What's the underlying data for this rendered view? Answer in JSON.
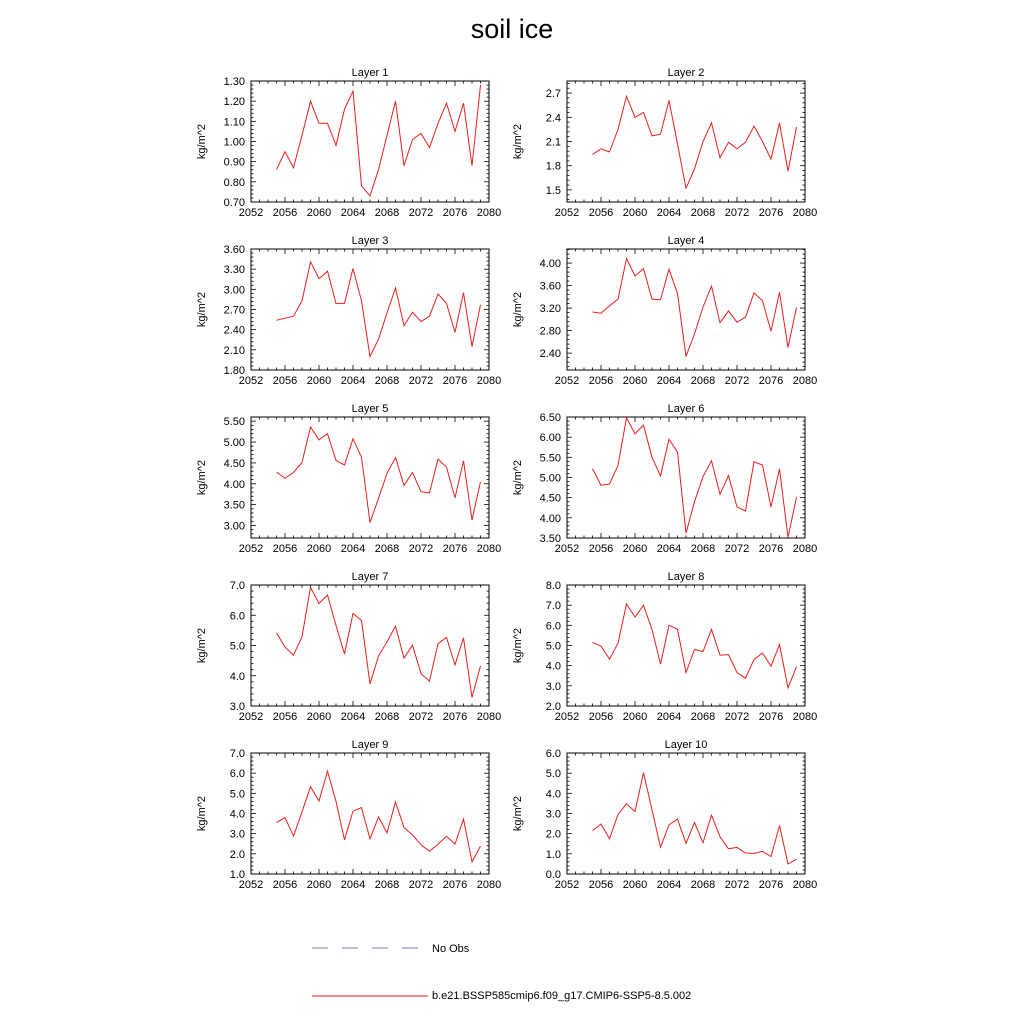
{
  "title": "soil ice",
  "legend": {
    "entries": [
      {
        "label": "No Obs",
        "color": "#7b7bd6",
        "style": "dashed"
      },
      {
        "label": "b.e21.BSSP585cmip6.f09_g17.CMIP6-SSP5-8.5.002",
        "color": "#e8201c",
        "style": "solid"
      }
    ]
  },
  "chart_data": [
    {
      "type": "line",
      "title": "Layer 1",
      "ylabel": "kg/m^2",
      "xlim": [
        2052,
        2080
      ],
      "ylim": [
        0.7,
        1.3
      ],
      "xticks": [
        2052,
        2056,
        2060,
        2064,
        2068,
        2072,
        2076,
        2080
      ],
      "yticks": [
        "0.70",
        "0.80",
        "0.90",
        "1.00",
        "1.10",
        "1.20",
        "1.30"
      ],
      "series": [
        {
          "color": "#e8201c",
          "x": [
            2055,
            2056,
            2057,
            2058,
            2059,
            2060,
            2061,
            2062,
            2063,
            2064,
            2065,
            2066,
            2067,
            2068,
            2069,
            2070,
            2071,
            2072,
            2073,
            2074,
            2075,
            2076,
            2077,
            2078,
            2079
          ],
          "y": [
            0.86,
            0.95,
            0.87,
            1.03,
            1.2,
            1.09,
            1.09,
            0.98,
            1.16,
            1.25,
            0.78,
            0.73,
            0.86,
            1.03,
            1.2,
            0.88,
            1.01,
            1.04,
            0.97,
            1.09,
            1.19,
            1.05,
            1.19,
            0.88,
            1.28
          ]
        }
      ]
    },
    {
      "type": "line",
      "title": "Layer 2",
      "ylabel": "kg/m^2",
      "xlim": [
        2052,
        2080
      ],
      "ylim": [
        1.35,
        2.85
      ],
      "xticks": [
        2052,
        2056,
        2060,
        2064,
        2068,
        2072,
        2076,
        2080
      ],
      "yticks": [
        "1.5",
        "1.8",
        "2.1",
        "2.4",
        "2.7"
      ],
      "series": [
        {
          "color": "#e8201c",
          "x": [
            2055,
            2056,
            2057,
            2058,
            2059,
            2060,
            2061,
            2062,
            2063,
            2064,
            2065,
            2066,
            2067,
            2068,
            2069,
            2070,
            2071,
            2072,
            2073,
            2074,
            2075,
            2076,
            2077,
            2078,
            2079
          ],
          "y": [
            1.94,
            2.01,
            1.97,
            2.25,
            2.66,
            2.4,
            2.46,
            2.17,
            2.19,
            2.61,
            2.07,
            1.52,
            1.76,
            2.1,
            2.33,
            1.9,
            2.09,
            2.01,
            2.09,
            2.29,
            2.1,
            1.88,
            2.33,
            1.73,
            2.28
          ]
        }
      ]
    },
    {
      "type": "line",
      "title": "Layer 3",
      "ylabel": "kg/m^2",
      "xlim": [
        2052,
        2080
      ],
      "ylim": [
        1.8,
        3.6
      ],
      "xticks": [
        2052,
        2056,
        2060,
        2064,
        2068,
        2072,
        2076,
        2080
      ],
      "yticks": [
        "1.80",
        "2.10",
        "2.40",
        "2.70",
        "3.00",
        "3.30",
        "3.60"
      ],
      "series": [
        {
          "color": "#e8201c",
          "x": [
            2055,
            2056,
            2057,
            2058,
            2059,
            2060,
            2061,
            2062,
            2063,
            2064,
            2065,
            2066,
            2067,
            2068,
            2069,
            2070,
            2071,
            2072,
            2073,
            2074,
            2075,
            2076,
            2077,
            2078,
            2079
          ],
          "y": [
            2.54,
            2.57,
            2.6,
            2.83,
            3.41,
            3.16,
            3.27,
            2.79,
            2.79,
            3.31,
            2.83,
            2.0,
            2.26,
            2.65,
            3.02,
            2.46,
            2.66,
            2.52,
            2.6,
            2.93,
            2.79,
            2.36,
            2.95,
            2.15,
            2.77
          ]
        }
      ]
    },
    {
      "type": "line",
      "title": "Layer 4",
      "ylabel": "kg/m^2",
      "xlim": [
        2052,
        2080
      ],
      "ylim": [
        2.1,
        4.25
      ],
      "xticks": [
        2052,
        2056,
        2060,
        2064,
        2068,
        2072,
        2076,
        2080
      ],
      "yticks": [
        "2.40",
        "2.80",
        "3.20",
        "3.60",
        "4.00"
      ],
      "series": [
        {
          "color": "#e8201c",
          "x": [
            2055,
            2056,
            2057,
            2058,
            2059,
            2060,
            2061,
            2062,
            2063,
            2064,
            2065,
            2066,
            2067,
            2068,
            2069,
            2070,
            2071,
            2072,
            2073,
            2074,
            2075,
            2076,
            2077,
            2078,
            2079
          ],
          "y": [
            3.13,
            3.11,
            3.24,
            3.36,
            4.08,
            3.77,
            3.9,
            3.36,
            3.35,
            3.89,
            3.46,
            2.34,
            2.74,
            3.22,
            3.59,
            2.94,
            3.15,
            2.95,
            3.04,
            3.47,
            3.33,
            2.79,
            3.48,
            2.5,
            3.21
          ]
        }
      ]
    },
    {
      "type": "line",
      "title": "Layer 5",
      "ylabel": "kg/m^2",
      "xlim": [
        2052,
        2080
      ],
      "ylim": [
        2.7,
        5.6
      ],
      "xticks": [
        2052,
        2056,
        2060,
        2064,
        2068,
        2072,
        2076,
        2080
      ],
      "yticks": [
        "3.00",
        "3.50",
        "4.00",
        "4.50",
        "5.00",
        "5.50"
      ],
      "series": [
        {
          "color": "#e8201c",
          "x": [
            2055,
            2056,
            2057,
            2058,
            2059,
            2060,
            2061,
            2062,
            2063,
            2064,
            2065,
            2066,
            2067,
            2068,
            2069,
            2070,
            2071,
            2072,
            2073,
            2074,
            2075,
            2076,
            2077,
            2078,
            2079
          ],
          "y": [
            4.28,
            4.13,
            4.27,
            4.51,
            5.36,
            5.05,
            5.2,
            4.56,
            4.45,
            5.08,
            4.64,
            3.07,
            3.65,
            4.25,
            4.63,
            3.96,
            4.27,
            3.81,
            3.78,
            4.59,
            4.4,
            3.66,
            4.55,
            3.13,
            4.05
          ]
        }
      ]
    },
    {
      "type": "line",
      "title": "Layer 6",
      "ylabel": "kg/m^2",
      "xlim": [
        2052,
        2080
      ],
      "ylim": [
        3.5,
        6.5
      ],
      "xticks": [
        2052,
        2056,
        2060,
        2064,
        2068,
        2072,
        2076,
        2080
      ],
      "yticks": [
        "3.50",
        "4.00",
        "4.50",
        "5.00",
        "5.50",
        "6.00",
        "6.50"
      ],
      "series": [
        {
          "color": "#e8201c",
          "x": [
            2055,
            2056,
            2057,
            2058,
            2059,
            2060,
            2061,
            2062,
            2063,
            2064,
            2065,
            2066,
            2067,
            2068,
            2069,
            2070,
            2071,
            2072,
            2073,
            2074,
            2075,
            2076,
            2077,
            2078,
            2079
          ],
          "y": [
            5.22,
            4.81,
            4.84,
            5.3,
            6.48,
            6.08,
            6.3,
            5.5,
            5.04,
            5.95,
            5.63,
            3.62,
            4.4,
            5.02,
            5.42,
            4.58,
            5.05,
            4.27,
            4.17,
            5.39,
            5.31,
            4.27,
            5.21,
            3.52,
            4.51
          ]
        }
      ]
    },
    {
      "type": "line",
      "title": "Layer 7",
      "ylabel": "kg/m^2",
      "xlim": [
        2052,
        2080
      ],
      "ylim": [
        3.0,
        7.0
      ],
      "xticks": [
        2052,
        2056,
        2060,
        2064,
        2068,
        2072,
        2076,
        2080
      ],
      "yticks": [
        "3.0",
        "4.0",
        "5.0",
        "6.0",
        "7.0"
      ],
      "series": [
        {
          "color": "#e8201c",
          "x": [
            2055,
            2056,
            2057,
            2058,
            2059,
            2060,
            2061,
            2062,
            2063,
            2064,
            2065,
            2066,
            2067,
            2068,
            2069,
            2070,
            2071,
            2072,
            2073,
            2074,
            2075,
            2076,
            2077,
            2078,
            2079
          ],
          "y": [
            5.42,
            4.95,
            4.68,
            5.29,
            6.92,
            6.39,
            6.67,
            5.66,
            4.72,
            6.06,
            5.83,
            3.73,
            4.65,
            5.12,
            5.64,
            4.58,
            5.01,
            4.07,
            3.82,
            5.06,
            5.27,
            4.36,
            5.25,
            3.28,
            4.33
          ]
        }
      ]
    },
    {
      "type": "line",
      "title": "Layer 8",
      "ylabel": "kg/m^2",
      "xlim": [
        2052,
        2080
      ],
      "ylim": [
        2.0,
        8.0
      ],
      "xticks": [
        2052,
        2056,
        2060,
        2064,
        2068,
        2072,
        2076,
        2080
      ],
      "yticks": [
        "2.0",
        "3.0",
        "4.0",
        "5.0",
        "6.0",
        "7.0",
        "8.0"
      ],
      "series": [
        {
          "color": "#e8201c",
          "x": [
            2055,
            2056,
            2057,
            2058,
            2059,
            2060,
            2061,
            2062,
            2063,
            2064,
            2065,
            2066,
            2067,
            2068,
            2069,
            2070,
            2071,
            2072,
            2073,
            2074,
            2075,
            2076,
            2077,
            2078,
            2079
          ],
          "y": [
            5.15,
            4.97,
            4.32,
            5.12,
            7.06,
            6.41,
            7.0,
            5.8,
            4.08,
            6.0,
            5.81,
            3.65,
            4.8,
            4.7,
            5.8,
            4.52,
            4.55,
            3.66,
            3.38,
            4.3,
            4.63,
            3.97,
            5.05,
            2.9,
            3.95
          ]
        }
      ]
    },
    {
      "type": "line",
      "title": "Layer 9",
      "ylabel": "kg/m^2",
      "xlim": [
        2052,
        2080
      ],
      "ylim": [
        1.0,
        7.0
      ],
      "xticks": [
        2052,
        2056,
        2060,
        2064,
        2068,
        2072,
        2076,
        2080
      ],
      "yticks": [
        "1.0",
        "2.0",
        "3.0",
        "4.0",
        "5.0",
        "6.0",
        "7.0"
      ],
      "series": [
        {
          "color": "#e8201c",
          "x": [
            2055,
            2056,
            2057,
            2058,
            2059,
            2060,
            2061,
            2062,
            2063,
            2064,
            2065,
            2066,
            2067,
            2068,
            2069,
            2070,
            2071,
            2072,
            2073,
            2074,
            2075,
            2076,
            2077,
            2078,
            2079
          ],
          "y": [
            3.55,
            3.8,
            2.88,
            4.08,
            5.33,
            4.62,
            6.1,
            4.6,
            2.69,
            4.12,
            4.3,
            2.74,
            3.83,
            3.04,
            4.57,
            3.3,
            2.94,
            2.45,
            2.13,
            2.48,
            2.87,
            2.49,
            3.72,
            1.6,
            2.39
          ]
        }
      ]
    },
    {
      "type": "line",
      "title": "Layer 10",
      "ylabel": "kg/m^2",
      "xlim": [
        2052,
        2080
      ],
      "ylim": [
        0.0,
        6.0
      ],
      "xticks": [
        2052,
        2056,
        2060,
        2064,
        2068,
        2072,
        2076,
        2080
      ],
      "yticks": [
        "0.0",
        "1.0",
        "2.0",
        "3.0",
        "4.0",
        "5.0",
        "6.0"
      ],
      "series": [
        {
          "color": "#e8201c",
          "x": [
            2055,
            2056,
            2057,
            2058,
            2059,
            2060,
            2061,
            2062,
            2063,
            2064,
            2065,
            2066,
            2067,
            2068,
            2069,
            2070,
            2071,
            2072,
            2073,
            2074,
            2075,
            2076,
            2077,
            2078,
            2079
          ],
          "y": [
            2.15,
            2.48,
            1.75,
            2.95,
            3.48,
            3.1,
            5.03,
            3.18,
            1.33,
            2.44,
            2.72,
            1.52,
            2.55,
            1.55,
            2.92,
            1.85,
            1.25,
            1.32,
            1.04,
            1.02,
            1.12,
            0.87,
            2.4,
            0.5,
            0.73
          ]
        }
      ]
    }
  ]
}
